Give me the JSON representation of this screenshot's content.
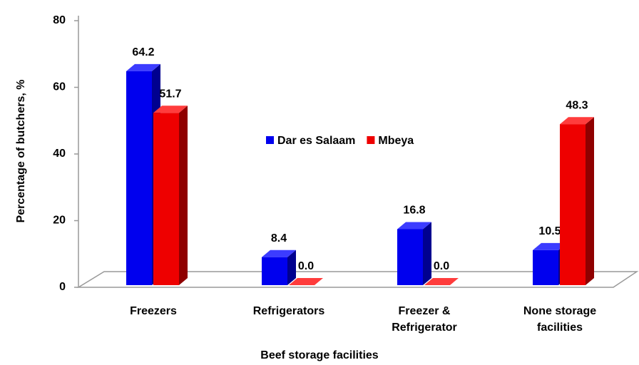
{
  "chart_data": {
    "type": "bar3d",
    "x_label": "Beef storage facilities",
    "y_label": "Percentage of butchers, %",
    "categories": [
      [
        "Freezers"
      ],
      [
        "Refrigerators"
      ],
      [
        "Freezer &",
        "Refrigerator"
      ],
      [
        "None storage",
        "facilities"
      ]
    ],
    "series": [
      {
        "name": "Dar es Salaam",
        "color": "#0000ee",
        "values": [
          64.2,
          8.4,
          16.8,
          10.5
        ],
        "value_labels": [
          "64.2",
          "8.4",
          "16.8",
          "10.5"
        ]
      },
      {
        "name": "Mbeya",
        "color": "#ee0000",
        "values": [
          51.7,
          0,
          0,
          48.3
        ],
        "value_labels": [
          "51.7",
          "0.0",
          "0.0",
          "48.3"
        ]
      }
    ],
    "ylim": [
      0,
      80
    ],
    "yticks": [
      0,
      20,
      40,
      60,
      80
    ],
    "legend": "center"
  }
}
